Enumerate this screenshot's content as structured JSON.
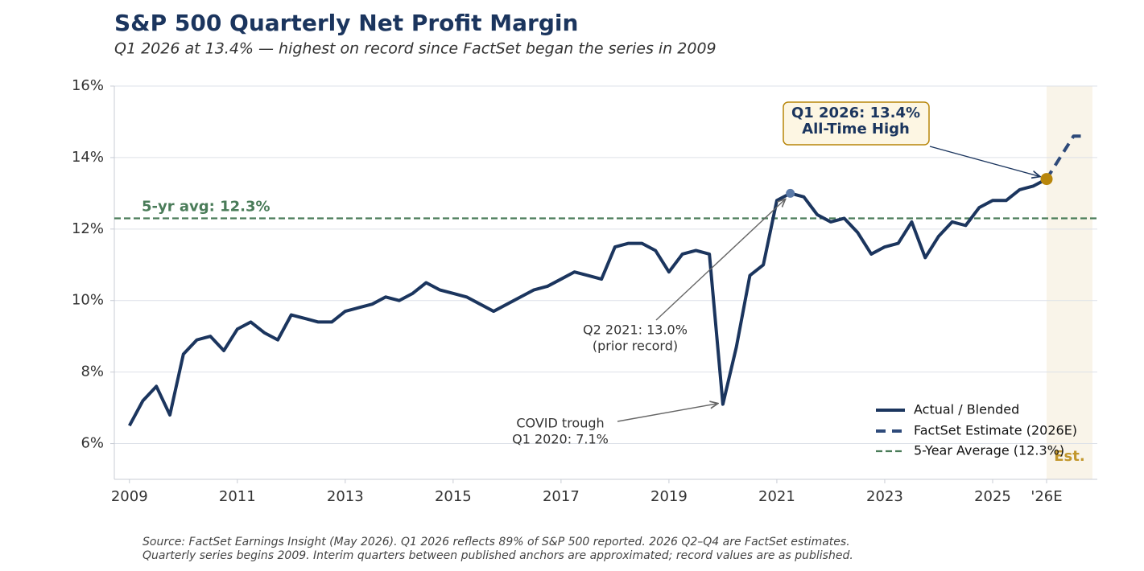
{
  "chart_data": {
    "type": "line",
    "title": "S&P 500 Quarterly Net Profit Margin",
    "subtitle": "Q1 2026 at 13.4% — highest on record since FactSet began the series in 2009",
    "xlim": [
      2008.72,
      2026.94
    ],
    "xticks": [
      2009,
      2011,
      2013,
      2015,
      2017,
      2019,
      2021,
      2023,
      2025,
      {
        "value": 2026,
        "label": "'26E"
      }
    ],
    "ylim": [
      5,
      16
    ],
    "yticks": [
      {
        "value": 6,
        "label": "6%"
      },
      {
        "value": 8,
        "label": "8%"
      },
      {
        "value": 10,
        "label": "10%"
      },
      {
        "value": 12,
        "label": "12%"
      },
      {
        "value": 14,
        "label": "14%"
      },
      {
        "value": 16,
        "label": "16%"
      }
    ],
    "grid": true,
    "series": [
      {
        "name": "Actual / Blended",
        "color": "#1b355e",
        "dash": false,
        "x": [
          2009,
          2009.25,
          2009.5,
          2009.75,
          2010,
          2010.25,
          2010.5,
          2010.75,
          2011,
          2011.25,
          2011.5,
          2011.75,
          2012,
          2012.25,
          2012.5,
          2012.75,
          2013,
          2013.25,
          2013.5,
          2013.75,
          2014,
          2014.25,
          2014.5,
          2014.75,
          2015,
          2015.25,
          2015.5,
          2015.75,
          2016,
          2016.25,
          2016.5,
          2016.75,
          2017,
          2017.25,
          2017.5,
          2017.75,
          2018,
          2018.25,
          2018.5,
          2018.75,
          2019,
          2019.25,
          2019.5,
          2019.75,
          2020,
          2020.25,
          2020.5,
          2020.75,
          2021,
          2021.25,
          2021.5,
          2021.75,
          2022,
          2022.25,
          2022.5,
          2022.75,
          2023,
          2023.25,
          2023.5,
          2023.75,
          2024,
          2024.25,
          2024.5,
          2024.75,
          2025,
          2025.25,
          2025.5,
          2025.75,
          2026
        ],
        "values": [
          6.5,
          7.2,
          7.6,
          6.8,
          8.5,
          8.9,
          9.0,
          8.6,
          9.2,
          9.4,
          9.1,
          8.9,
          9.6,
          9.5,
          9.4,
          9.4,
          9.7,
          9.8,
          9.9,
          10.1,
          10.0,
          10.2,
          10.5,
          10.3,
          10.2,
          10.1,
          9.9,
          9.7,
          9.9,
          10.1,
          10.3,
          10.4,
          10.6,
          10.8,
          10.7,
          10.6,
          11.5,
          11.6,
          11.6,
          11.4,
          10.8,
          11.3,
          11.4,
          11.3,
          7.1,
          8.7,
          10.7,
          11.0,
          12.8,
          13.0,
          12.9,
          12.4,
          12.2,
          12.3,
          11.9,
          11.3,
          11.5,
          11.6,
          12.2,
          11.2,
          11.8,
          12.2,
          12.1,
          12.6,
          12.8,
          12.8,
          13.1,
          13.2,
          13.4
        ]
      },
      {
        "name": "FactSet Estimate (2026E)",
        "color": "#2e4a7a",
        "dash": true,
        "x": [
          2026,
          2026.25,
          2026.5,
          2026.75
        ],
        "values": [
          13.4,
          14.0,
          14.6,
          14.6
        ]
      }
    ],
    "average": {
      "name": "5-Year Average (12.3%)",
      "label": "5-yr avg: 12.3%",
      "value": 12.3,
      "color": "#4a7c59"
    },
    "estimate_region": {
      "x": [
        2026,
        2026.85
      ],
      "label": "Est.",
      "color": "#b8860b"
    },
    "highlights": [
      {
        "series": 0,
        "index": 49,
        "color": "#5b7aa8"
      },
      {
        "series": 0,
        "index": 68,
        "color": "#b8860b"
      }
    ],
    "annotations": [
      {
        "lines": [
          "Q1 2026: 13.4%",
          "All-Time High"
        ],
        "x": 2026,
        "y": 13.4
      },
      {
        "lines": [
          "Q2 2021: 13.0%",
          "(prior record)"
        ],
        "x": 2021.25,
        "y": 13.0
      },
      {
        "lines": [
          "COVID trough",
          "Q1 2020: 7.1%"
        ],
        "x": 2020,
        "y": 7.1
      }
    ],
    "legend": "lower right",
    "footnote": [
      "Source: FactSet Earnings Insight (May 2026). Q1 2026 reflects 89% of S&P 500 reported. 2026 Q2–Q4 are FactSet estimates.",
      "Quarterly series begins 2009. Interim quarters between published anchors are approximated; record values are as published."
    ]
  }
}
